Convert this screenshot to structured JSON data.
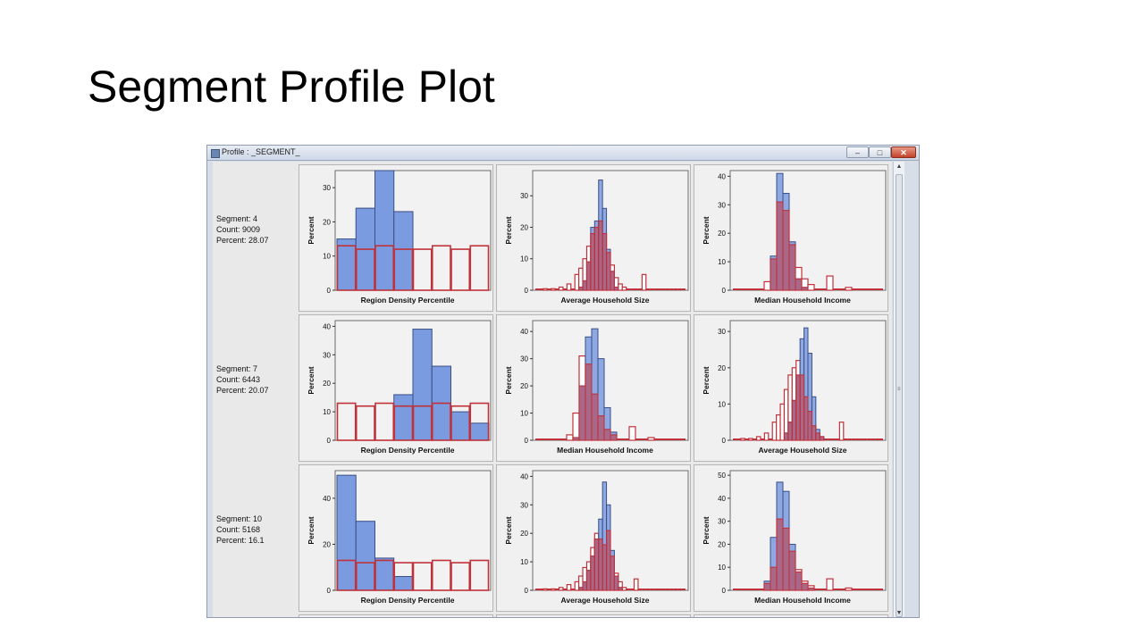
{
  "slide": {
    "title": "Segment Profile Plot"
  },
  "window": {
    "title": "Profile : _SEGMENT_",
    "min_glyph": "–",
    "max_glyph": "□",
    "close_glyph": "✕"
  },
  "scrollbar": {
    "up": "▲",
    "down": "▼",
    "grip": "≡"
  },
  "colors": {
    "segment_fill": "#7b9be0",
    "segment_stroke": "#3a4f85",
    "overall_stroke": "#c0313a",
    "overall_fill": "#ffffff"
  },
  "rows": [
    {
      "segment": "Segment: 4",
      "count": "Count: 9009",
      "percent": "Percent: 28.07",
      "charts": [
        {
          "type": "bar",
          "xlabel": "Region Density Percentile",
          "ylabel": "Percent",
          "ylim": [
            0,
            35
          ],
          "yticks": [
            "0",
            "10",
            "20",
            "30"
          ],
          "tick_values": [
            0,
            10,
            20,
            30
          ],
          "variant": "categorical",
          "series": [
            {
              "name": "segment",
              "values": [
                15,
                24,
                35,
                23,
                0,
                0,
                0,
                0
              ]
            },
            {
              "name": "overall",
              "values": [
                13,
                12,
                13,
                12,
                12,
                13,
                12,
                13
              ]
            }
          ]
        },
        {
          "type": "bar",
          "xlabel": "Average Household Size",
          "ylabel": "Percent",
          "ylim": [
            0,
            38
          ],
          "yticks": [
            "0",
            "10",
            "20",
            "30"
          ],
          "tick_values": [
            0,
            10,
            20,
            30
          ],
          "variant": "continuous",
          "series": [
            {
              "name": "segment",
              "values": [
                0,
                0,
                0,
                0,
                0,
                0,
                0,
                0,
                0,
                0,
                0,
                1,
                3,
                9,
                20,
                22,
                35,
                26,
                13,
                6,
                1,
                0,
                0,
                0,
                0,
                0,
                0,
                0,
                0,
                0,
                0,
                0,
                0,
                0,
                0,
                0,
                0,
                0
              ]
            },
            {
              "name": "overall",
              "values": [
                0,
                0,
                0.5,
                0,
                0.5,
                0,
                1,
                0,
                2,
                0,
                5,
                7,
                10,
                14,
                18,
                20,
                22,
                18,
                12,
                8,
                4,
                2,
                1,
                0,
                0,
                0,
                0,
                5,
                0,
                0,
                0,
                0,
                0,
                0,
                0,
                0,
                0,
                0
              ]
            }
          ]
        },
        {
          "type": "bar",
          "xlabel": "Median Household Income",
          "ylabel": "Percent",
          "ylim": [
            0,
            42
          ],
          "yticks": [
            "0",
            "10",
            "20",
            "30",
            "40"
          ],
          "tick_values": [
            0,
            10,
            20,
            30,
            40
          ],
          "variant": "continuous",
          "series": [
            {
              "name": "segment",
              "values": [
                0,
                0,
                0,
                0,
                0,
                0,
                12,
                41,
                34,
                17,
                4,
                1,
                0,
                0,
                0,
                0,
                0,
                0,
                0,
                0,
                0,
                0,
                0,
                0
              ]
            },
            {
              "name": "overall",
              "values": [
                0,
                0,
                0,
                0,
                0,
                3,
                11,
                31,
                28,
                16,
                8,
                4,
                2,
                0,
                0,
                5,
                0,
                0,
                1,
                0,
                0,
                0,
                0,
                0
              ]
            }
          ]
        }
      ]
    },
    {
      "segment": "Segment: 7",
      "count": "Count: 6443",
      "percent": "Percent: 20.07",
      "charts": [
        {
          "type": "bar",
          "xlabel": "Region Density Percentile",
          "ylabel": "Percent",
          "ylim": [
            0,
            42
          ],
          "yticks": [
            "0",
            "10",
            "20",
            "30",
            "40"
          ],
          "tick_values": [
            0,
            10,
            20,
            30,
            40
          ],
          "variant": "categorical",
          "series": [
            {
              "name": "segment",
              "values": [
                0,
                0,
                0,
                16,
                39,
                26,
                10,
                6
              ]
            },
            {
              "name": "overall",
              "values": [
                13,
                12,
                13,
                12,
                12,
                13,
                12,
                13
              ]
            }
          ]
        },
        {
          "type": "bar",
          "xlabel": "Median Household Income",
          "ylabel": "Percent",
          "ylim": [
            0,
            44
          ],
          "yticks": [
            "0",
            "10",
            "20",
            "30",
            "40"
          ],
          "tick_values": [
            0,
            10,
            20,
            30,
            40
          ],
          "variant": "continuous",
          "series": [
            {
              "name": "segment",
              "values": [
                0,
                0,
                0,
                0,
                0,
                0,
                1,
                20,
                38,
                41,
                30,
                12,
                3,
                0,
                0,
                0,
                0,
                0,
                0,
                0,
                0,
                0,
                0,
                0
              ]
            },
            {
              "name": "overall",
              "values": [
                0,
                0,
                0,
                0,
                0,
                2,
                10,
                31,
                28,
                17,
                9,
                4,
                2,
                0,
                0,
                5,
                0,
                0,
                1,
                0,
                0,
                0,
                0,
                0
              ]
            }
          ]
        },
        {
          "type": "bar",
          "xlabel": "Average Household Size",
          "ylabel": "Percent",
          "ylim": [
            0,
            33
          ],
          "yticks": [
            "0",
            "10",
            "20",
            "30"
          ],
          "tick_values": [
            0,
            10,
            20,
            30
          ],
          "variant": "continuous",
          "series": [
            {
              "name": "segment",
              "values": [
                0,
                0,
                0,
                0,
                0,
                0,
                0,
                0,
                0,
                0,
                0,
                0,
                0,
                2,
                5,
                11,
                18,
                28,
                31,
                24,
                12,
                3,
                1,
                0,
                0,
                0,
                0,
                0,
                0,
                0,
                0,
                0,
                0,
                0,
                0,
                0,
                0,
                0
              ]
            },
            {
              "name": "overall",
              "values": [
                0,
                0,
                0.5,
                0,
                0.5,
                0,
                1,
                0,
                2,
                0,
                5,
                7,
                10,
                14,
                18,
                20,
                22,
                18,
                12,
                8,
                4,
                2,
                1,
                0,
                0,
                0,
                0,
                5,
                0,
                0,
                0,
                0,
                0,
                0,
                0,
                0,
                0,
                0
              ]
            }
          ]
        }
      ]
    },
    {
      "segment": "Segment: 10",
      "count": "Count: 5168",
      "percent": "Percent: 16.1",
      "charts": [
        {
          "type": "bar",
          "xlabel": "Region Density Percentile",
          "ylabel": "Percent",
          "ylim": [
            0,
            52
          ],
          "yticks": [
            "0",
            "20",
            "40"
          ],
          "tick_values": [
            0,
            20,
            40
          ],
          "variant": "categorical",
          "series": [
            {
              "name": "segment",
              "values": [
                50,
                30,
                14,
                6,
                0,
                0,
                0,
                0
              ]
            },
            {
              "name": "overall",
              "values": [
                13,
                12,
                13,
                12,
                12,
                13,
                12,
                13
              ]
            }
          ]
        },
        {
          "type": "bar",
          "xlabel": "Average Household Size",
          "ylabel": "Percent",
          "ylim": [
            0,
            42
          ],
          "yticks": [
            "0",
            "10",
            "20",
            "30",
            "40"
          ],
          "tick_values": [
            0,
            10,
            20,
            30,
            40
          ],
          "variant": "continuous",
          "series": [
            {
              "name": "segment",
              "values": [
                0,
                0,
                0,
                0,
                0,
                0,
                0,
                0,
                0,
                0,
                0,
                1,
                3,
                7,
                12,
                18,
                25,
                38,
                30,
                14,
                5,
                1,
                0,
                0,
                0,
                0,
                0,
                0,
                0,
                0,
                0,
                0,
                0,
                0,
                0,
                0,
                0,
                0
              ]
            },
            {
              "name": "overall",
              "values": [
                0,
                0,
                0.5,
                0,
                0.5,
                0,
                1,
                0,
                2,
                0,
                3,
                5,
                8,
                10,
                15,
                20,
                18,
                16,
                21,
                12,
                6,
                3,
                1,
                0,
                0,
                4,
                0,
                0,
                0,
                0,
                0,
                0,
                0,
                0,
                0,
                0,
                0,
                0
              ]
            }
          ]
        },
        {
          "type": "bar",
          "xlabel": "Median Household Income",
          "ylabel": "Percent",
          "ylim": [
            0,
            52
          ],
          "yticks": [
            "0",
            "10",
            "20",
            "30",
            "40",
            "50"
          ],
          "tick_values": [
            0,
            10,
            20,
            30,
            40,
            50
          ],
          "variant": "continuous",
          "series": [
            {
              "name": "segment",
              "values": [
                0,
                0,
                0,
                0,
                0,
                4,
                23,
                47,
                43,
                20,
                8,
                3,
                1,
                0,
                0,
                0,
                0,
                0,
                0,
                0,
                0,
                0,
                0,
                0
              ]
            },
            {
              "name": "overall",
              "values": [
                0,
                0,
                0,
                0,
                0,
                3,
                10,
                31,
                27,
                17,
                9,
                4,
                2,
                0,
                0,
                5,
                0,
                0,
                1,
                0,
                0,
                0,
                0,
                0
              ]
            }
          ]
        }
      ]
    }
  ]
}
